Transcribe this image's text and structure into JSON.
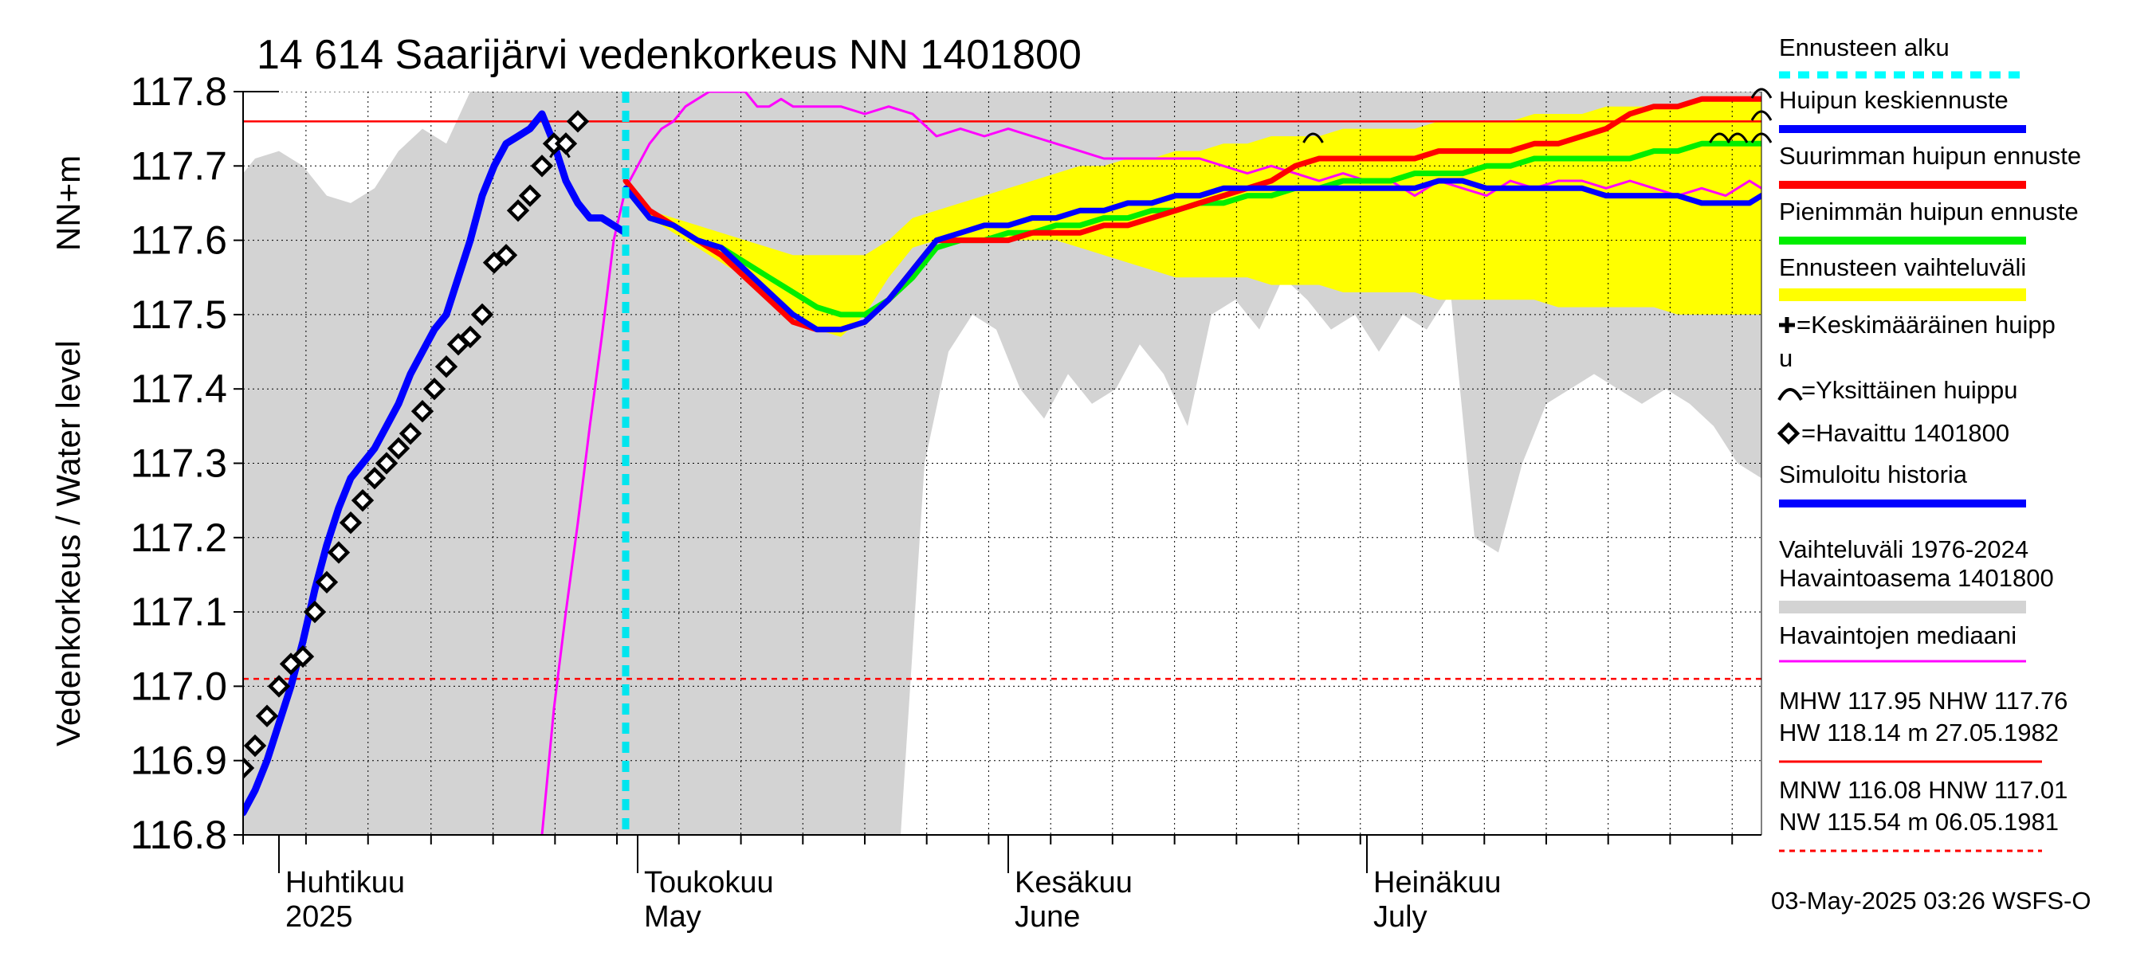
{
  "chart_data": {
    "type": "line",
    "title": "14 614 Saarijärvi vedenkorkeus NN 1401800",
    "ylabel_left": "Vedenkorkeus / Water level",
    "ylabel_unit": "NN+m",
    "ylim": [
      116.8,
      117.8
    ],
    "yticks": [
      116.8,
      116.9,
      117.0,
      117.1,
      117.2,
      117.3,
      117.4,
      117.5,
      117.6,
      117.7,
      117.8
    ],
    "ytick_labels": [
      "116.8",
      "116.9",
      "117.0",
      "117.1",
      "117.2",
      "117.3",
      "117.4",
      "117.5",
      "117.6",
      "117.7",
      "117.8"
    ],
    "x_unit": "day index (0 = 29 Mar 2025)",
    "xlim": [
      0,
      127
    ],
    "x_grid_days": [
      0,
      5.26,
      10.45,
      15.72,
      20.91,
      26.09,
      31.27,
      36.45,
      41.64,
      46.82,
      52.0,
      57.18,
      62.36,
      67.55,
      72.72,
      77.91,
      83.09,
      88.27,
      93.45,
      98.64,
      103.82,
      109.0,
      114.18,
      119.36,
      124.55
    ],
    "x_month_ticks": [
      {
        "day": 3,
        "fi": "Huhtikuu",
        "en": "2025"
      },
      {
        "day": 33,
        "fi": "Toukokuu",
        "en": "May"
      },
      {
        "day": 64,
        "fi": "Kesäkuu",
        "en": "June"
      },
      {
        "day": 94,
        "fi": "Heinäkuu",
        "en": "July"
      }
    ],
    "forecast_start_day": 32,
    "reference_lines": [
      {
        "name": "NHW",
        "value": 117.76,
        "color": "#ff0000",
        "style": "solid"
      },
      {
        "name": "HNW",
        "value": 117.01,
        "color": "#ff0000",
        "style": "dashed"
      }
    ],
    "history_band": {
      "name": "Vaihteluväli 1976-2024 Havaintoasema 1401800",
      "color": "#d3d3d3",
      "x": [
        0,
        1,
        3,
        5,
        7,
        9,
        11,
        13,
        15,
        17,
        19,
        21,
        23,
        25,
        27,
        29,
        31,
        33,
        35,
        37,
        39,
        41,
        43,
        45,
        47,
        49,
        51,
        53,
        55,
        57,
        59,
        61,
        63,
        65,
        67,
        69,
        71,
        73,
        75,
        77,
        79,
        81,
        83,
        85,
        87,
        89,
        91,
        93,
        95,
        97,
        99,
        101,
        103,
        105,
        107,
        109,
        111,
        113,
        115,
        117,
        119,
        121,
        123,
        125,
        127
      ],
      "upper": [
        117.69,
        117.71,
        117.72,
        117.7,
        117.66,
        117.65,
        117.67,
        117.72,
        117.75,
        117.73,
        117.8,
        117.8,
        117.8,
        117.8,
        117.8,
        117.8,
        117.8,
        117.8,
        117.8,
        117.8,
        117.8,
        117.8,
        117.8,
        117.8,
        117.8,
        117.8,
        117.8,
        117.8,
        117.8,
        117.8,
        117.8,
        117.8,
        117.8,
        117.8,
        117.8,
        117.8,
        117.8,
        117.8,
        117.8,
        117.8,
        117.8,
        117.8,
        117.8,
        117.8,
        117.8,
        117.8,
        117.8,
        117.8,
        117.8,
        117.8,
        117.8,
        117.8,
        117.8,
        117.8,
        117.8,
        117.8,
        117.8,
        117.8,
        117.8,
        117.8,
        117.8,
        117.8,
        117.8,
        117.8,
        117.8
      ],
      "lower": [
        116.8,
        116.8,
        116.8,
        116.8,
        116.8,
        116.8,
        116.8,
        116.8,
        116.8,
        116.8,
        116.8,
        116.8,
        116.8,
        116.8,
        116.8,
        116.8,
        116.8,
        116.8,
        116.8,
        116.8,
        116.8,
        116.8,
        116.8,
        116.8,
        116.8,
        116.8,
        116.8,
        116.8,
        116.8,
        117.3,
        117.45,
        117.5,
        117.48,
        117.4,
        117.36,
        117.42,
        117.38,
        117.4,
        117.46,
        117.42,
        117.35,
        117.5,
        117.52,
        117.48,
        117.55,
        117.52,
        117.48,
        117.5,
        117.45,
        117.5,
        117.48,
        117.53,
        117.2,
        117.18,
        117.3,
        117.38,
        117.4,
        117.42,
        117.4,
        117.38,
        117.4,
        117.38,
        117.35,
        117.3,
        117.28
      ]
    },
    "forecast_band": {
      "name": "Ennusteen vaihteluväli",
      "color": "#ffff00",
      "x": [
        32,
        34,
        36,
        38,
        40,
        42,
        44,
        46,
        48,
        50,
        52,
        54,
        56,
        58,
        60,
        62,
        64,
        66,
        68,
        70,
        72,
        74,
        76,
        78,
        80,
        82,
        84,
        86,
        88,
        90,
        92,
        94,
        96,
        98,
        100,
        102,
        104,
        106,
        108,
        110,
        112,
        114,
        116,
        118,
        120,
        122,
        124,
        126,
        127
      ],
      "upper": [
        117.68,
        117.64,
        117.63,
        117.62,
        117.61,
        117.6,
        117.59,
        117.58,
        117.58,
        117.58,
        117.58,
        117.6,
        117.63,
        117.64,
        117.65,
        117.66,
        117.67,
        117.68,
        117.69,
        117.7,
        117.7,
        117.71,
        117.71,
        117.72,
        117.72,
        117.73,
        117.73,
        117.74,
        117.74,
        117.74,
        117.75,
        117.75,
        117.75,
        117.75,
        117.76,
        117.76,
        117.76,
        117.76,
        117.77,
        117.77,
        117.77,
        117.78,
        117.78,
        117.78,
        117.78,
        117.79,
        117.79,
        117.79,
        117.79
      ],
      "lower": [
        117.67,
        117.63,
        117.61,
        117.59,
        117.57,
        117.55,
        117.52,
        117.49,
        117.48,
        117.47,
        117.5,
        117.55,
        117.59,
        117.6,
        117.6,
        117.6,
        117.6,
        117.6,
        117.6,
        117.59,
        117.58,
        117.57,
        117.56,
        117.55,
        117.55,
        117.55,
        117.55,
        117.54,
        117.54,
        117.54,
        117.53,
        117.53,
        117.53,
        117.53,
        117.52,
        117.52,
        117.52,
        117.52,
        117.52,
        117.51,
        117.51,
        117.51,
        117.51,
        117.51,
        117.5,
        117.5,
        117.5,
        117.5,
        117.5
      ]
    },
    "series": [
      {
        "name": "Havaintojen mediaani",
        "color": "#ff00ff",
        "width": 3,
        "x": [
          25,
          26,
          27,
          28,
          29,
          30,
          31,
          32,
          33,
          34,
          35,
          36,
          37,
          38,
          39,
          40,
          41,
          42,
          43,
          44,
          45,
          46,
          47,
          48,
          50,
          52,
          54,
          56,
          58,
          60,
          62,
          64,
          66,
          68,
          70,
          72,
          74,
          76,
          78,
          80,
          82,
          84,
          86,
          88,
          90,
          92,
          94,
          96,
          98,
          100,
          102,
          104,
          106,
          108,
          110,
          112,
          114,
          116,
          118,
          120,
          122,
          124,
          126,
          127
        ],
        "y": [
          116.8,
          116.97,
          117.1,
          117.22,
          117.35,
          117.47,
          117.6,
          117.67,
          117.7,
          117.73,
          117.75,
          117.76,
          117.78,
          117.79,
          117.8,
          117.8,
          117.8,
          117.8,
          117.78,
          117.78,
          117.79,
          117.78,
          117.78,
          117.78,
          117.78,
          117.77,
          117.78,
          117.77,
          117.74,
          117.75,
          117.74,
          117.75,
          117.74,
          117.73,
          117.72,
          117.71,
          117.71,
          117.71,
          117.71,
          117.71,
          117.7,
          117.69,
          117.7,
          117.69,
          117.68,
          117.69,
          117.68,
          117.68,
          117.66,
          117.68,
          117.67,
          117.66,
          117.68,
          117.67,
          117.68,
          117.68,
          117.67,
          117.68,
          117.67,
          117.66,
          117.67,
          117.66,
          117.68,
          117.67
        ]
      },
      {
        "name": "Pienimmän huipun ennuste",
        "color": "#00ee00",
        "width": 7,
        "x": [
          32,
          34,
          36,
          38,
          40,
          42,
          44,
          46,
          48,
          50,
          52,
          54,
          56,
          58,
          60,
          62,
          64,
          66,
          68,
          70,
          72,
          74,
          76,
          78,
          80,
          82,
          84,
          86,
          88,
          90,
          92,
          94,
          96,
          98,
          100,
          102,
          104,
          106,
          108,
          110,
          112,
          114,
          116,
          118,
          120,
          122,
          124,
          126,
          127
        ],
        "y": [
          117.67,
          117.63,
          117.62,
          117.6,
          117.59,
          117.57,
          117.55,
          117.53,
          117.51,
          117.5,
          117.5,
          117.52,
          117.55,
          117.59,
          117.6,
          117.6,
          117.61,
          117.61,
          117.62,
          117.62,
          117.63,
          117.63,
          117.64,
          117.64,
          117.65,
          117.65,
          117.66,
          117.66,
          117.67,
          117.67,
          117.68,
          117.68,
          117.68,
          117.69,
          117.69,
          117.69,
          117.7,
          117.7,
          117.71,
          117.71,
          117.71,
          117.71,
          117.71,
          117.72,
          117.72,
          117.73,
          117.73,
          117.73,
          117.73
        ]
      },
      {
        "name": "Suurimman huipun ennuste",
        "color": "#ff0000",
        "width": 7,
        "x": [
          32,
          34,
          36,
          38,
          40,
          42,
          44,
          46,
          48,
          50,
          52,
          54,
          56,
          58,
          60,
          62,
          64,
          66,
          68,
          70,
          72,
          74,
          76,
          78,
          80,
          82,
          84,
          86,
          88,
          90,
          92,
          94,
          96,
          98,
          100,
          102,
          104,
          106,
          108,
          110,
          112,
          114,
          116,
          118,
          120,
          122,
          124,
          126,
          127
        ],
        "y": [
          117.68,
          117.64,
          117.62,
          117.6,
          117.58,
          117.55,
          117.52,
          117.49,
          117.48,
          117.48,
          117.49,
          117.52,
          117.56,
          117.6,
          117.6,
          117.6,
          117.6,
          117.61,
          117.61,
          117.61,
          117.62,
          117.62,
          117.63,
          117.64,
          117.65,
          117.66,
          117.67,
          117.68,
          117.7,
          117.71,
          117.71,
          117.71,
          117.71,
          117.71,
          117.72,
          117.72,
          117.72,
          117.72,
          117.73,
          117.73,
          117.74,
          117.75,
          117.77,
          117.78,
          117.78,
          117.79,
          117.79,
          117.79,
          117.79
        ]
      },
      {
        "name": "Huipun keskiennuste",
        "color": "#0000ff",
        "width": 7,
        "x": [
          32,
          34,
          36,
          38,
          40,
          42,
          44,
          46,
          48,
          50,
          52,
          54,
          56,
          58,
          60,
          62,
          64,
          66,
          68,
          70,
          72,
          74,
          76,
          78,
          80,
          82,
          84,
          86,
          88,
          90,
          92,
          94,
          96,
          98,
          100,
          102,
          104,
          106,
          108,
          110,
          112,
          114,
          116,
          118,
          120,
          122,
          124,
          126,
          127
        ],
        "y": [
          117.67,
          117.63,
          117.62,
          117.6,
          117.59,
          117.56,
          117.53,
          117.5,
          117.48,
          117.48,
          117.49,
          117.52,
          117.56,
          117.6,
          117.61,
          117.62,
          117.62,
          117.63,
          117.63,
          117.64,
          117.64,
          117.65,
          117.65,
          117.66,
          117.66,
          117.67,
          117.67,
          117.67,
          117.67,
          117.67,
          117.67,
          117.67,
          117.67,
          117.67,
          117.68,
          117.68,
          117.67,
          117.67,
          117.67,
          117.67,
          117.67,
          117.66,
          117.66,
          117.66,
          117.66,
          117.65,
          117.65,
          117.65,
          117.66
        ]
      },
      {
        "name": "Simuloitu historia",
        "color": "#0000ff",
        "width": 9,
        "x": [
          0,
          1,
          2,
          3,
          4,
          5,
          6,
          7,
          8,
          9,
          10,
          11,
          12,
          13,
          14,
          15,
          16,
          17,
          18,
          19,
          20,
          21,
          22,
          23,
          24,
          25,
          26,
          27,
          28,
          29,
          30,
          31,
          32
        ],
        "y": [
          116.83,
          116.86,
          116.9,
          116.95,
          117.0,
          117.06,
          117.13,
          117.19,
          117.24,
          117.28,
          117.3,
          117.32,
          117.35,
          117.38,
          117.42,
          117.45,
          117.48,
          117.5,
          117.55,
          117.6,
          117.66,
          117.7,
          117.73,
          117.74,
          117.75,
          117.77,
          117.73,
          117.68,
          117.65,
          117.63,
          117.63,
          117.62,
          117.61
        ]
      }
    ],
    "observed": {
      "name": "Havaittu 1401800",
      "color": "#000000",
      "x": [
        0,
        1,
        2,
        3,
        4,
        5,
        6,
        7,
        8,
        9,
        10,
        11,
        12,
        13,
        14,
        15,
        16,
        17,
        18,
        19,
        20,
        21,
        22,
        23,
        24,
        25,
        26
      ],
      "y": [
        116.89,
        116.92,
        116.96,
        117.0,
        117.03,
        117.04,
        117.1,
        117.14,
        117.18,
        117.22,
        117.25,
        117.28,
        117.3,
        117.32,
        117.34,
        117.37,
        117.4,
        117.43,
        117.46,
        117.47,
        117.5,
        117.57,
        117.58,
        117.64,
        117.66,
        117.7,
        117.73
      ]
    },
    "observed_tail": {
      "x": [
        27,
        28
      ],
      "y": [
        117.73,
        117.76
      ]
    },
    "single_peaks": [
      {
        "x": 26.5,
        "y": 117.72
      },
      {
        "x": 89.5,
        "y": 117.74
      },
      {
        "x": 123.5,
        "y": 117.74
      },
      {
        "x": 125,
        "y": 117.74
      },
      {
        "x": 127,
        "y": 117.74
      },
      {
        "x": 127,
        "y": 117.77
      },
      {
        "x": 127,
        "y": 117.8
      }
    ],
    "legend": [
      {
        "label": "Ennusteen alku",
        "color": "#00ffff",
        "kind": "dashed"
      },
      {
        "label": "Huipun keskiennuste",
        "color": "#0000ff",
        "kind": "line"
      },
      {
        "label": "Suurimman huipun ennuste",
        "color": "#ff0000",
        "kind": "line"
      },
      {
        "label": "Pienimmän huipun ennuste",
        "color": "#00ee00",
        "kind": "line"
      },
      {
        "label": "Ennusteen vaihteluväli",
        "color": "#ffff00",
        "kind": "band"
      },
      {
        "label1": "=Keskimääräinen huipp",
        "label2": "u",
        "kind": "plus"
      },
      {
        "label": "=Yksittäinen huippu",
        "kind": "arc"
      },
      {
        "label": "=Havaittu 1401800",
        "kind": "diamond"
      },
      {
        "label": "Simuloitu historia",
        "color": "#0000ff",
        "kind": "line"
      },
      {
        "label1": "Vaihteluväli 1976-2024",
        "label2": " Havaintoasema 1401800",
        "color": "#d3d3d3",
        "kind": "band"
      },
      {
        "label": "Havaintojen mediaani",
        "color": "#ff00ff",
        "kind": "thin"
      },
      {
        "label1": "MHW 117.95 NHW 117.76",
        "label2": "HW 118.14 m 27.05.1982",
        "color": "#ff0000",
        "kind": "thin"
      },
      {
        "label1": "MNW 116.08 HNW 117.01",
        "label2": "NW 115.54 m 06.05.1981",
        "color": "#ff0000",
        "kind": "dashed-thin"
      }
    ],
    "footer": "03-May-2025 03:26 WSFS-O"
  }
}
